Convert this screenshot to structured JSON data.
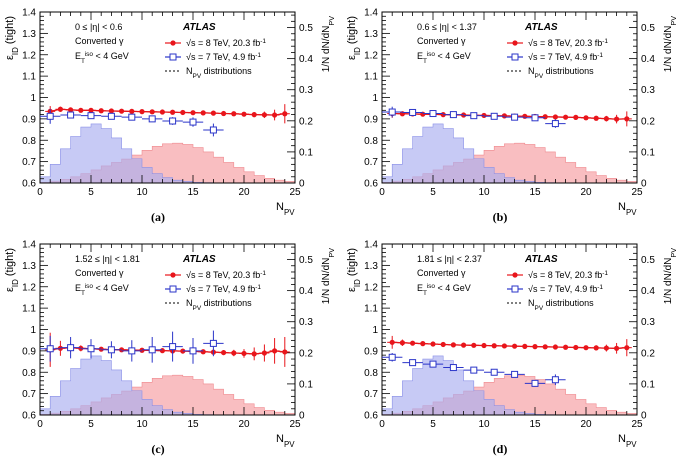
{
  "figure": {
    "x_label_main": "N",
    "x_label_sub": "PV",
    "left_label_main": "ε",
    "left_label_sub": "ID",
    "left_label_suffix": " (tight)",
    "right_label": "1/N dN/dN",
    "right_label_sub": "PV",
    "atlas": "ATLAS",
    "converted": "Converted γ",
    "et_main": "E",
    "et_sub": "T",
    "et_sup": "iso",
    "et_suffix": " < 4 GeV",
    "legend": {
      "s8_root": "√s",
      "s8_text": " = 8 TeV, 20.3 fb",
      "s8_sup": "-1",
      "s7_root": "√s",
      "s7_text": " = 7 TeV, 4.9 fb",
      "s7_sup": "-1",
      "npv_main": "N",
      "npv_sub": "PV",
      "npv_suffix": " distributions"
    },
    "colors": {
      "s8": "#e8151b",
      "s7": "#2b35c9",
      "hist8": "#f7a8ac",
      "hist7": "#a9aef0"
    }
  },
  "chart_data": [
    {
      "type": "line",
      "panel": "(a)",
      "eta_range": "0 ≤ |η| < 0.6",
      "xlim": [
        0,
        25
      ],
      "ylim": [
        0.6,
        1.4
      ],
      "y2lim": [
        0,
        0.55
      ],
      "xticks": [
        "0",
        "5",
        "10",
        "15",
        "20",
        "25"
      ],
      "yticks": [
        "0.6",
        "0.7",
        "0.8",
        "0.9",
        "1",
        "1.1",
        "1.2",
        "1.3",
        "1.4"
      ],
      "y2ticks": [
        "0",
        "0.1",
        "0.2",
        "0.3",
        "0.4",
        "0.5"
      ],
      "series": [
        {
          "name": "√s = 8 TeV, 20.3 fb-1",
          "x": [
            1,
            2,
            3,
            4,
            5,
            6,
            7,
            8,
            9,
            10,
            11,
            12,
            13,
            14,
            15,
            16,
            17,
            18,
            19,
            20,
            21,
            22,
            23,
            24
          ],
          "y": [
            0.935,
            0.945,
            0.942,
            0.94,
            0.94,
            0.938,
            0.937,
            0.936,
            0.935,
            0.934,
            0.933,
            0.932,
            0.931,
            0.93,
            0.929,
            0.928,
            0.927,
            0.925,
            0.924,
            0.922,
            0.92,
            0.919,
            0.918,
            0.924
          ],
          "err": [
            0.025,
            0.012,
            0.008,
            0.006,
            0.005,
            0.004,
            0.004,
            0.004,
            0.004,
            0.004,
            0.004,
            0.004,
            0.004,
            0.004,
            0.004,
            0.004,
            0.005,
            0.006,
            0.007,
            0.009,
            0.012,
            0.015,
            0.025,
            0.045
          ]
        },
        {
          "name": "√s = 7 TeV, 4.9 fb-1",
          "x": [
            1,
            3,
            5,
            7,
            9,
            11,
            13,
            15,
            17
          ],
          "y": [
            0.912,
            0.918,
            0.915,
            0.912,
            0.908,
            0.9,
            0.89,
            0.885,
            0.848
          ],
          "err": [
            0.035,
            0.015,
            0.012,
            0.01,
            0.012,
            0.015,
            0.018,
            0.022,
            0.03
          ]
        },
        {
          "name": "NPV 8 TeV",
          "x": [
            1,
            2,
            3,
            4,
            5,
            6,
            7,
            8,
            9,
            10,
            11,
            12,
            13,
            14,
            15,
            16,
            17,
            18,
            19,
            20,
            21,
            22,
            23,
            24,
            25
          ],
          "y": [
            0.002,
            0.006,
            0.012,
            0.02,
            0.03,
            0.042,
            0.055,
            0.066,
            0.077,
            0.09,
            0.105,
            0.118,
            0.126,
            0.128,
            0.124,
            0.114,
            0.1,
            0.083,
            0.066,
            0.05,
            0.036,
            0.024,
            0.015,
            0.009,
            0.005
          ]
        },
        {
          "name": "NPV 7 TeV",
          "x": [
            1,
            2,
            3,
            4,
            5,
            6,
            7,
            8,
            9,
            10,
            11,
            12,
            13,
            14,
            15,
            16,
            17,
            18,
            19,
            20,
            21,
            22,
            23,
            24,
            25
          ],
          "y": [
            0.02,
            0.06,
            0.11,
            0.15,
            0.18,
            0.19,
            0.175,
            0.145,
            0.11,
            0.078,
            0.05,
            0.03,
            0.017,
            0.009,
            0.005,
            0.002,
            0.001,
            0,
            0,
            0,
            0,
            0,
            0,
            0,
            0
          ]
        }
      ]
    },
    {
      "type": "line",
      "panel": "(b)",
      "eta_range": "0.6 ≤ |η| < 1.37",
      "xlim": [
        0,
        25
      ],
      "ylim": [
        0.6,
        1.4
      ],
      "y2lim": [
        0,
        0.55
      ],
      "xticks": [
        "0",
        "5",
        "10",
        "15",
        "20",
        "25"
      ],
      "yticks": [
        "0.6",
        "0.7",
        "0.8",
        "0.9",
        "1",
        "1.1",
        "1.2",
        "1.3",
        "1.4"
      ],
      "y2ticks": [
        "0",
        "0.1",
        "0.2",
        "0.3",
        "0.4",
        "0.5"
      ],
      "series": [
        {
          "name": "√s = 8 TeV, 20.3 fb-1",
          "x": [
            1,
            2,
            3,
            4,
            5,
            6,
            7,
            8,
            9,
            10,
            11,
            12,
            13,
            14,
            15,
            16,
            17,
            18,
            19,
            20,
            21,
            22,
            23,
            24
          ],
          "y": [
            0.925,
            0.924,
            0.923,
            0.922,
            0.921,
            0.92,
            0.919,
            0.918,
            0.917,
            0.916,
            0.915,
            0.914,
            0.913,
            0.912,
            0.911,
            0.91,
            0.909,
            0.908,
            0.907,
            0.905,
            0.903,
            0.901,
            0.899,
            0.9
          ],
          "err": [
            0.02,
            0.01,
            0.007,
            0.005,
            0.004,
            0.004,
            0.004,
            0.003,
            0.003,
            0.003,
            0.003,
            0.003,
            0.003,
            0.003,
            0.003,
            0.004,
            0.004,
            0.005,
            0.006,
            0.008,
            0.01,
            0.013,
            0.02,
            0.035
          ]
        },
        {
          "name": "√s = 7 TeV, 4.9 fb-1",
          "x": [
            1,
            3,
            5,
            7,
            9,
            11,
            13,
            15,
            17
          ],
          "y": [
            0.932,
            0.93,
            0.925,
            0.92,
            0.915,
            0.912,
            0.908,
            0.905,
            0.878
          ],
          "err": [
            0.025,
            0.01,
            0.008,
            0.007,
            0.008,
            0.01,
            0.012,
            0.015,
            0.02
          ]
        },
        {
          "name": "NPV 8 TeV",
          "x": [
            1,
            2,
            3,
            4,
            5,
            6,
            7,
            8,
            9,
            10,
            11,
            12,
            13,
            14,
            15,
            16,
            17,
            18,
            19,
            20,
            21,
            22,
            23,
            24,
            25
          ],
          "y": [
            0.002,
            0.006,
            0.012,
            0.02,
            0.03,
            0.042,
            0.055,
            0.066,
            0.077,
            0.09,
            0.105,
            0.118,
            0.126,
            0.128,
            0.124,
            0.114,
            0.1,
            0.083,
            0.066,
            0.05,
            0.036,
            0.024,
            0.015,
            0.009,
            0.005
          ]
        },
        {
          "name": "NPV 7 TeV",
          "x": [
            1,
            2,
            3,
            4,
            5,
            6,
            7,
            8,
            9,
            10,
            11,
            12,
            13,
            14,
            15,
            16,
            17,
            18,
            19,
            20,
            21,
            22,
            23,
            24,
            25
          ],
          "y": [
            0.02,
            0.06,
            0.11,
            0.15,
            0.18,
            0.19,
            0.175,
            0.145,
            0.11,
            0.078,
            0.05,
            0.03,
            0.017,
            0.009,
            0.005,
            0.002,
            0.001,
            0,
            0,
            0,
            0,
            0,
            0,
            0,
            0
          ]
        }
      ]
    },
    {
      "type": "line",
      "panel": "(c)",
      "eta_range": "1.52 ≤ |η| < 1.81",
      "xlim": [
        0,
        25
      ],
      "ylim": [
        0.6,
        1.4
      ],
      "y2lim": [
        0,
        0.55
      ],
      "xticks": [
        "0",
        "5",
        "10",
        "15",
        "20",
        "25"
      ],
      "yticks": [
        "0.6",
        "0.7",
        "0.8",
        "0.9",
        "1",
        "1.1",
        "1.2",
        "1.3",
        "1.4"
      ],
      "y2ticks": [
        "0",
        "0.1",
        "0.2",
        "0.3",
        "0.4",
        "0.5"
      ],
      "series": [
        {
          "name": "√s = 8 TeV, 20.3 fb-1",
          "x": [
            1,
            2,
            3,
            4,
            5,
            6,
            7,
            8,
            9,
            10,
            11,
            12,
            13,
            14,
            15,
            16,
            17,
            18,
            19,
            20,
            21,
            22,
            23,
            24
          ],
          "y": [
            0.905,
            0.912,
            0.915,
            0.912,
            0.91,
            0.908,
            0.906,
            0.905,
            0.904,
            0.903,
            0.902,
            0.901,
            0.9,
            0.899,
            0.898,
            0.896,
            0.894,
            0.892,
            0.89,
            0.888,
            0.886,
            0.89,
            0.9,
            0.895
          ],
          "err": [
            0.08,
            0.035,
            0.02,
            0.014,
            0.01,
            0.008,
            0.007,
            0.006,
            0.006,
            0.006,
            0.006,
            0.006,
            0.007,
            0.007,
            0.008,
            0.009,
            0.01,
            0.012,
            0.015,
            0.02,
            0.03,
            0.04,
            0.06,
            0.07
          ]
        },
        {
          "name": "√s = 7 TeV, 4.9 fb-1",
          "x": [
            1,
            3,
            5,
            7,
            9,
            11,
            13,
            15,
            17
          ],
          "y": [
            0.91,
            0.915,
            0.91,
            0.905,
            0.9,
            0.905,
            0.92,
            0.9,
            0.935
          ],
          "err": [
            0.06,
            0.05,
            0.045,
            0.04,
            0.05,
            0.06,
            0.07,
            0.06,
            0.06
          ]
        },
        {
          "name": "NPV 8 TeV",
          "x": [
            1,
            2,
            3,
            4,
            5,
            6,
            7,
            8,
            9,
            10,
            11,
            12,
            13,
            14,
            15,
            16,
            17,
            18,
            19,
            20,
            21,
            22,
            23,
            24,
            25
          ],
          "y": [
            0.002,
            0.006,
            0.012,
            0.02,
            0.03,
            0.042,
            0.055,
            0.066,
            0.077,
            0.09,
            0.105,
            0.118,
            0.126,
            0.128,
            0.124,
            0.114,
            0.1,
            0.083,
            0.066,
            0.05,
            0.036,
            0.024,
            0.015,
            0.009,
            0.005
          ]
        },
        {
          "name": "NPV 7 TeV",
          "x": [
            1,
            2,
            3,
            4,
            5,
            6,
            7,
            8,
            9,
            10,
            11,
            12,
            13,
            14,
            15,
            16,
            17,
            18,
            19,
            20,
            21,
            22,
            23,
            24,
            25
          ],
          "y": [
            0.02,
            0.06,
            0.11,
            0.15,
            0.18,
            0.19,
            0.175,
            0.145,
            0.11,
            0.078,
            0.05,
            0.03,
            0.017,
            0.009,
            0.005,
            0.002,
            0.001,
            0,
            0,
            0,
            0,
            0,
            0,
            0,
            0
          ]
        }
      ]
    },
    {
      "type": "line",
      "panel": "(d)",
      "eta_range": "1.81 ≤ |η| < 2.37",
      "xlim": [
        0,
        25
      ],
      "ylim": [
        0.6,
        1.4
      ],
      "y2lim": [
        0,
        0.55
      ],
      "xticks": [
        "0",
        "5",
        "10",
        "15",
        "20",
        "25"
      ],
      "yticks": [
        "0.6",
        "0.7",
        "0.8",
        "0.9",
        "1",
        "1.1",
        "1.2",
        "1.3",
        "1.4"
      ],
      "y2ticks": [
        "0",
        "0.1",
        "0.2",
        "0.3",
        "0.4",
        "0.5"
      ],
      "series": [
        {
          "name": "√s = 8 TeV, 20.3 fb-1",
          "x": [
            1,
            2,
            3,
            4,
            5,
            6,
            7,
            8,
            9,
            10,
            11,
            12,
            13,
            14,
            15,
            16,
            17,
            18,
            19,
            20,
            21,
            22,
            23,
            24
          ],
          "y": [
            0.94,
            0.938,
            0.936,
            0.934,
            0.932,
            0.93,
            0.928,
            0.927,
            0.926,
            0.925,
            0.924,
            0.923,
            0.922,
            0.921,
            0.92,
            0.919,
            0.918,
            0.917,
            0.916,
            0.915,
            0.914,
            0.913,
            0.912,
            0.915
          ],
          "err": [
            0.03,
            0.015,
            0.01,
            0.007,
            0.005,
            0.005,
            0.004,
            0.004,
            0.004,
            0.004,
            0.004,
            0.004,
            0.004,
            0.004,
            0.004,
            0.005,
            0.005,
            0.006,
            0.007,
            0.009,
            0.012,
            0.016,
            0.025,
            0.04
          ]
        },
        {
          "name": "√s = 7 TeV, 4.9 fb-1",
          "x": [
            1,
            3,
            5,
            7,
            9,
            11,
            13,
            15,
            17
          ],
          "y": [
            0.87,
            0.845,
            0.838,
            0.822,
            0.81,
            0.8,
            0.79,
            0.748,
            0.765
          ],
          "err": [
            0.02,
            0.01,
            0.008,
            0.007,
            0.008,
            0.01,
            0.012,
            0.015,
            0.025
          ]
        },
        {
          "name": "NPV 8 TeV",
          "x": [
            1,
            2,
            3,
            4,
            5,
            6,
            7,
            8,
            9,
            10,
            11,
            12,
            13,
            14,
            15,
            16,
            17,
            18,
            19,
            20,
            21,
            22,
            23,
            24,
            25
          ],
          "y": [
            0.002,
            0.006,
            0.012,
            0.02,
            0.03,
            0.042,
            0.055,
            0.066,
            0.077,
            0.09,
            0.105,
            0.118,
            0.126,
            0.128,
            0.124,
            0.114,
            0.1,
            0.083,
            0.066,
            0.05,
            0.036,
            0.024,
            0.015,
            0.009,
            0.005
          ]
        },
        {
          "name": "NPV 7 TeV",
          "x": [
            1,
            2,
            3,
            4,
            5,
            6,
            7,
            8,
            9,
            10,
            11,
            12,
            13,
            14,
            15,
            16,
            17,
            18,
            19,
            20,
            21,
            22,
            23,
            24,
            25
          ],
          "y": [
            0.02,
            0.06,
            0.11,
            0.15,
            0.18,
            0.19,
            0.175,
            0.145,
            0.11,
            0.078,
            0.05,
            0.03,
            0.017,
            0.009,
            0.005,
            0.002,
            0.001,
            0,
            0,
            0,
            0,
            0,
            0,
            0,
            0
          ]
        }
      ]
    }
  ]
}
